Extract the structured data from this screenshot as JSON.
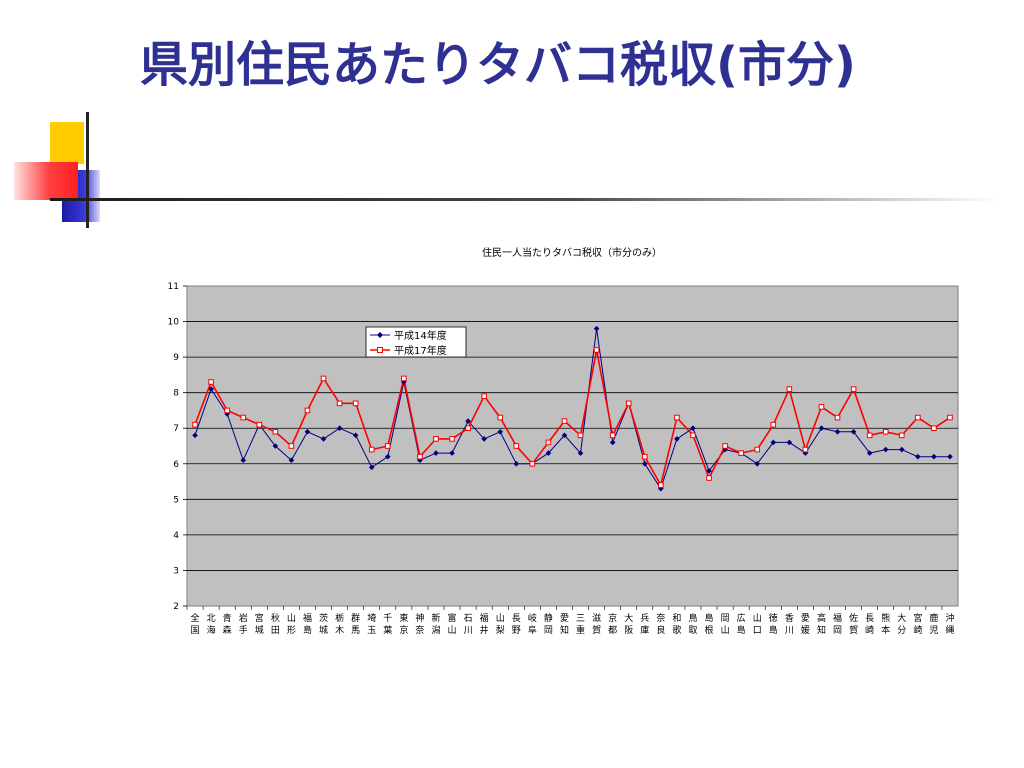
{
  "slide": {
    "title": "県別住民あたりタバコ税収(市分)"
  },
  "chart_data": {
    "type": "line",
    "title": "住民一人当たりタバコ税収（市分のみ）",
    "xlabel": "",
    "ylabel": "",
    "ylim": [
      2,
      11
    ],
    "yticks": [
      2,
      3,
      4,
      5,
      6,
      7,
      8,
      9,
      10,
      11
    ],
    "grid": true,
    "plot_background": "#c0c0c0",
    "legend_position": "top-center-left",
    "categories": [
      "全国",
      "北海",
      "青森",
      "岩手",
      "宮城",
      "秋田",
      "山形",
      "福島",
      "茨城",
      "栃木",
      "群馬",
      "埼玉",
      "千葉",
      "東京",
      "神奈",
      "新潟",
      "富山",
      "石川",
      "福井",
      "山梨",
      "長野",
      "岐阜",
      "静岡",
      "愛知",
      "三重",
      "滋賀",
      "京都",
      "大阪",
      "兵庫",
      "奈良",
      "和歌",
      "鳥取",
      "島根",
      "岡山",
      "広島",
      "山口",
      "徳島",
      "香川",
      "愛媛",
      "高知",
      "福岡",
      "佐賀",
      "長崎",
      "熊本",
      "大分",
      "宮崎",
      "鹿児",
      "沖縄"
    ],
    "series": [
      {
        "name": "平成14年度",
        "color": "#000080",
        "marker": "diamond",
        "values": [
          6.8,
          8.1,
          7.4,
          6.1,
          7.1,
          6.5,
          6.1,
          6.9,
          6.7,
          7.0,
          6.8,
          5.9,
          6.2,
          8.3,
          6.1,
          6.3,
          6.3,
          7.2,
          6.7,
          6.9,
          6.0,
          6.0,
          6.3,
          6.8,
          6.3,
          9.8,
          6.6,
          7.7,
          6.0,
          5.3,
          6.7,
          7.0,
          5.8,
          6.4,
          6.3,
          6.0,
          6.6,
          6.6,
          6.3,
          7.0,
          6.9,
          6.9,
          6.3,
          6.4,
          6.4,
          6.2,
          6.2,
          6.2
        ]
      },
      {
        "name": "平成17年度",
        "color": "#ff0000",
        "marker": "square",
        "values": [
          7.1,
          8.3,
          7.5,
          7.3,
          7.1,
          6.9,
          6.5,
          7.5,
          8.4,
          7.7,
          7.7,
          6.4,
          6.5,
          8.4,
          6.2,
          6.7,
          6.7,
          7.0,
          7.9,
          7.3,
          6.5,
          6.0,
          6.6,
          7.2,
          6.8,
          9.2,
          6.8,
          7.7,
          6.2,
          5.4,
          7.3,
          6.8,
          5.6,
          6.5,
          6.3,
          6.4,
          7.1,
          8.1,
          6.4,
          7.6,
          7.3,
          8.1,
          6.8,
          6.9,
          6.8,
          7.3,
          7.0,
          7.3
        ]
      }
    ]
  }
}
